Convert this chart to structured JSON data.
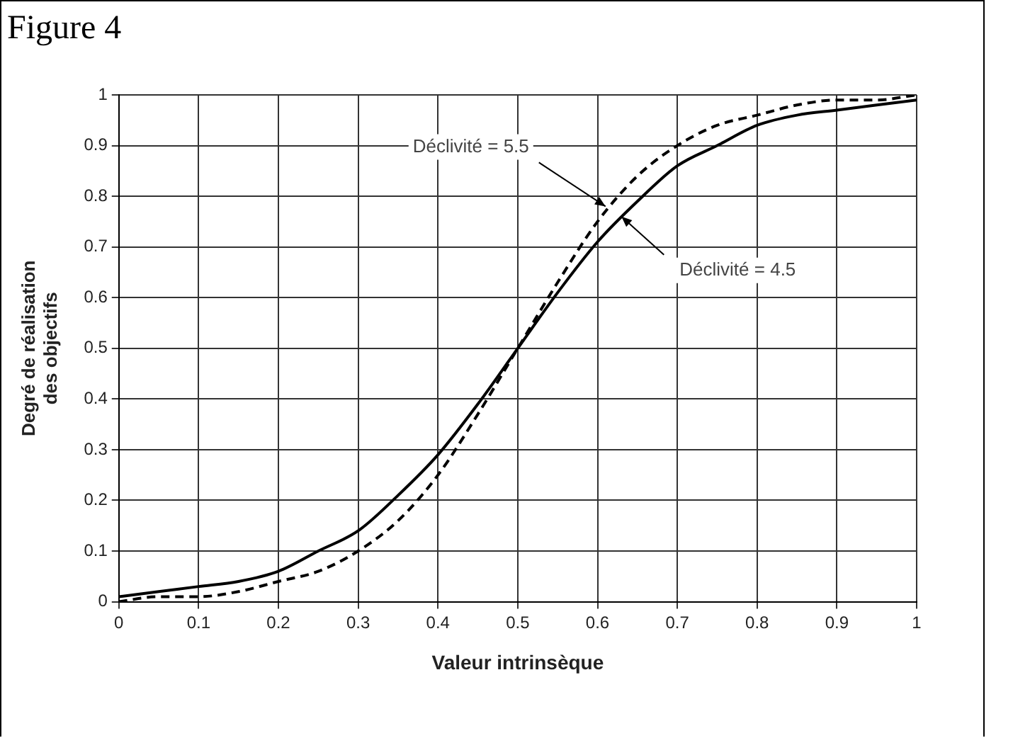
{
  "chart_data": {
    "type": "line",
    "title": "Figure 4",
    "xlabel": "Valeur intrinsèque",
    "ylabel": "Degré de réalisation des objectifs",
    "x": [
      0,
      0.05,
      0.1,
      0.15,
      0.2,
      0.25,
      0.3,
      0.35,
      0.4,
      0.45,
      0.5,
      0.55,
      0.6,
      0.65,
      0.7,
      0.75,
      0.8,
      0.85,
      0.9,
      0.95,
      1
    ],
    "series": [
      {
        "color": "#000000",
        "line_style": "solid",
        "values": [
          0.01,
          0.02,
          0.03,
          0.04,
          0.06,
          0.1,
          0.14,
          0.21,
          0.29,
          0.39,
          0.5,
          0.61,
          0.71,
          0.79,
          0.86,
          0.9,
          0.94,
          0.96,
          0.97,
          0.98,
          0.99
        ]
      },
      {
        "color": "#000000",
        "line_style": "dashed",
        "values": [
          0.0,
          0.01,
          0.01,
          0.02,
          0.04,
          0.06,
          0.1,
          0.16,
          0.25,
          0.37,
          0.5,
          0.63,
          0.75,
          0.84,
          0.9,
          0.94,
          0.96,
          0.98,
          0.99,
          0.99,
          1.0
        ]
      }
    ],
    "annotations": [
      {
        "text": "Déclivité = 5.5",
        "x": 0.61,
        "y": 0.78
      },
      {
        "text": "Déclivité = 4.5",
        "x": 0.63,
        "y": 0.76
      }
    ],
    "xlim": [
      0,
      1
    ],
    "xticks": [
      0,
      0.1,
      0.2,
      0.3,
      0.4,
      0.5,
      0.6,
      0.7,
      0.8,
      0.9,
      1
    ],
    "ylim": [
      0,
      1
    ],
    "yticks": [
      0,
      0.1,
      0.2,
      0.3,
      0.4,
      0.5,
      0.6,
      0.7,
      0.8,
      0.9,
      1
    ],
    "grid": true,
    "legend": false,
    "marker": "none"
  }
}
